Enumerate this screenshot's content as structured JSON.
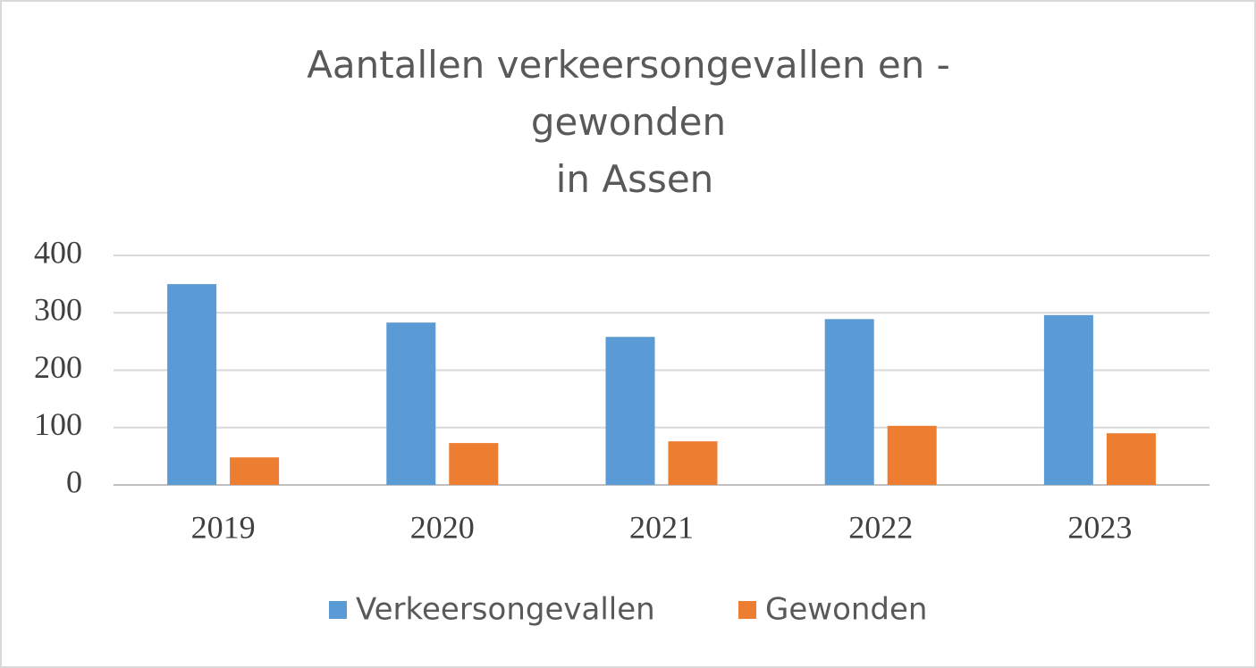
{
  "chart_data": {
    "type": "bar",
    "title": [
      "Aantallen verkeersongevallen en -",
      "gewonden",
      "in Assen"
    ],
    "categories": [
      "2019",
      "2020",
      "2021",
      "2022",
      "2023"
    ],
    "series": [
      {
        "name": "Verkeersongevallen",
        "color": "#5b9bd5",
        "values": [
          350,
          283,
          258,
          289,
          296
        ]
      },
      {
        "name": "Gewonden",
        "color": "#ed7d31",
        "values": [
          48,
          73,
          76,
          103,
          90
        ]
      }
    ],
    "ylim": [
      0,
      400
    ],
    "yticks": [
      0,
      100,
      200,
      300,
      400
    ],
    "grid": true,
    "legend": "bottom"
  }
}
